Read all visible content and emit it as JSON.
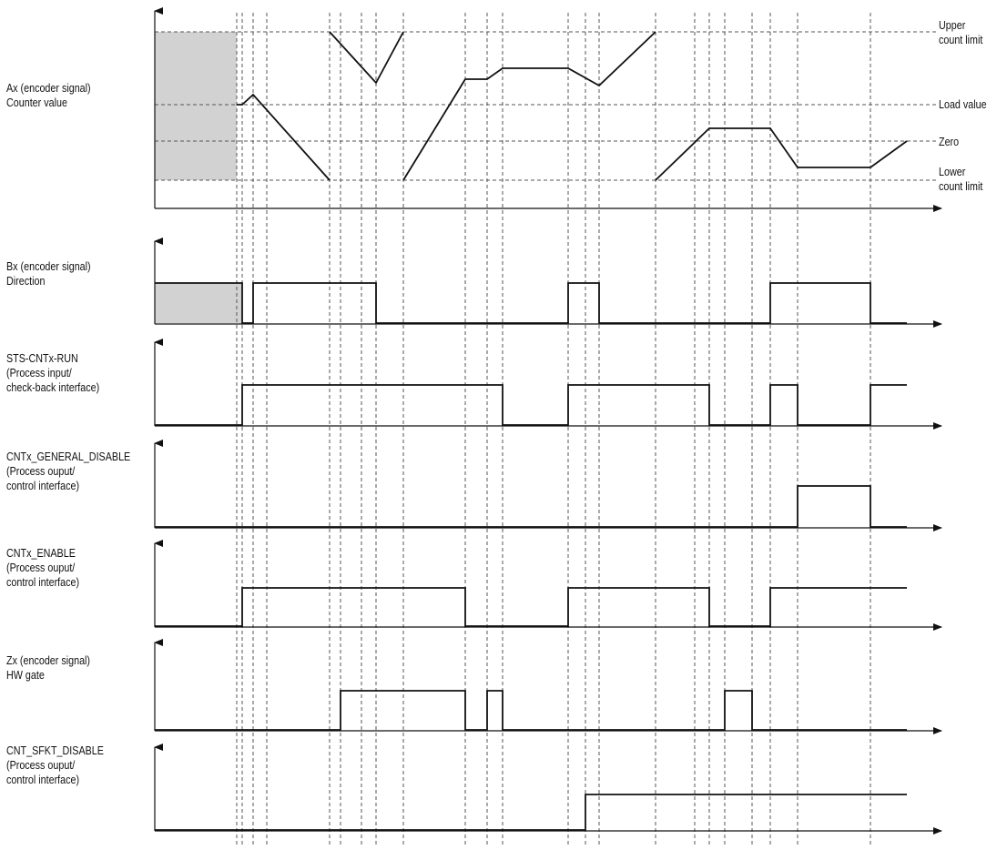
{
  "colors": {
    "line": "#111111",
    "gridline": "#555555",
    "shade": "#d2d2d2"
  },
  "reference_levels": [
    {
      "name": "upper",
      "lines": [
        "Upper",
        "count limit"
      ]
    },
    {
      "name": "load",
      "lines": [
        "Load value"
      ]
    },
    {
      "name": "zero",
      "lines": [
        "Zero"
      ]
    },
    {
      "name": "lower",
      "lines": [
        "Lower",
        "count limit"
      ]
    }
  ],
  "signals": [
    {
      "name": "ax",
      "lines": [
        "Ax (encoder signal)",
        "Counter value"
      ]
    },
    {
      "name": "bx",
      "lines": [
        "Bx (encoder signal)",
        "Direction"
      ]
    },
    {
      "name": "sts-cntx-run",
      "lines": [
        "STS-CNTx-RUN",
        "(Process input/",
        "check-back interface)"
      ]
    },
    {
      "name": "cntx-general-disable",
      "lines": [
        "CNTx_GENERAL_DISABLE",
        "(Process ouput/",
        "control interface)"
      ]
    },
    {
      "name": "cntx-enable",
      "lines": [
        "CNTx_ENABLE",
        "(Process ouput/",
        "control interface)"
      ]
    },
    {
      "name": "zx",
      "lines": [
        "Zx (encoder signal)",
        "HW gate"
      ]
    },
    {
      "name": "cnt-sfkt-disable",
      "lines": [
        "CNT_SFKT_DISABLE",
        "(Process ouput/",
        "control interface)"
      ]
    }
  ]
}
